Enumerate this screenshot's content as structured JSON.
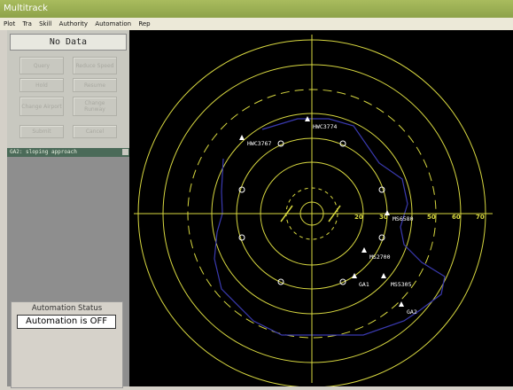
{
  "window": {
    "title": "Multitrack"
  },
  "menu": [
    "Plot",
    "Tra",
    "Skill",
    "Authority",
    "Automation",
    "Rep"
  ],
  "command_panel": {
    "status": "No Data",
    "buttons": [
      {
        "label": "Query"
      },
      {
        "label": "Reduce Speed"
      },
      {
        "label": "Hold"
      },
      {
        "label": "Resume"
      },
      {
        "label": "Change Airport"
      },
      {
        "label": "Change Runway"
      },
      {
        "label": "Submit"
      },
      {
        "label": "Cancel"
      }
    ]
  },
  "status_line": "GA2: sloping approach",
  "automation": {
    "title": "Automation Status",
    "value": "Automation is OFF"
  },
  "radar": {
    "range_labels": [
      "20",
      "30",
      "50",
      "60",
      "70"
    ],
    "aircraft": [
      {
        "id": "HWC3774",
        "label": "HWC3774"
      },
      {
        "id": "HWC3767",
        "label": "HWC3767"
      },
      {
        "id": "MS6580",
        "label": "MS6580"
      },
      {
        "id": "MS2700",
        "label": "MS2700"
      },
      {
        "id": "GA1",
        "label": "GA1"
      },
      {
        "id": "MS5305",
        "label": "MS5305"
      },
      {
        "id": "GA2",
        "label": "GA2"
      }
    ],
    "colors": {
      "rings": "#d8d840",
      "outline": "#3a3ab0",
      "background": "#000000",
      "labels": "#ffffff"
    }
  }
}
